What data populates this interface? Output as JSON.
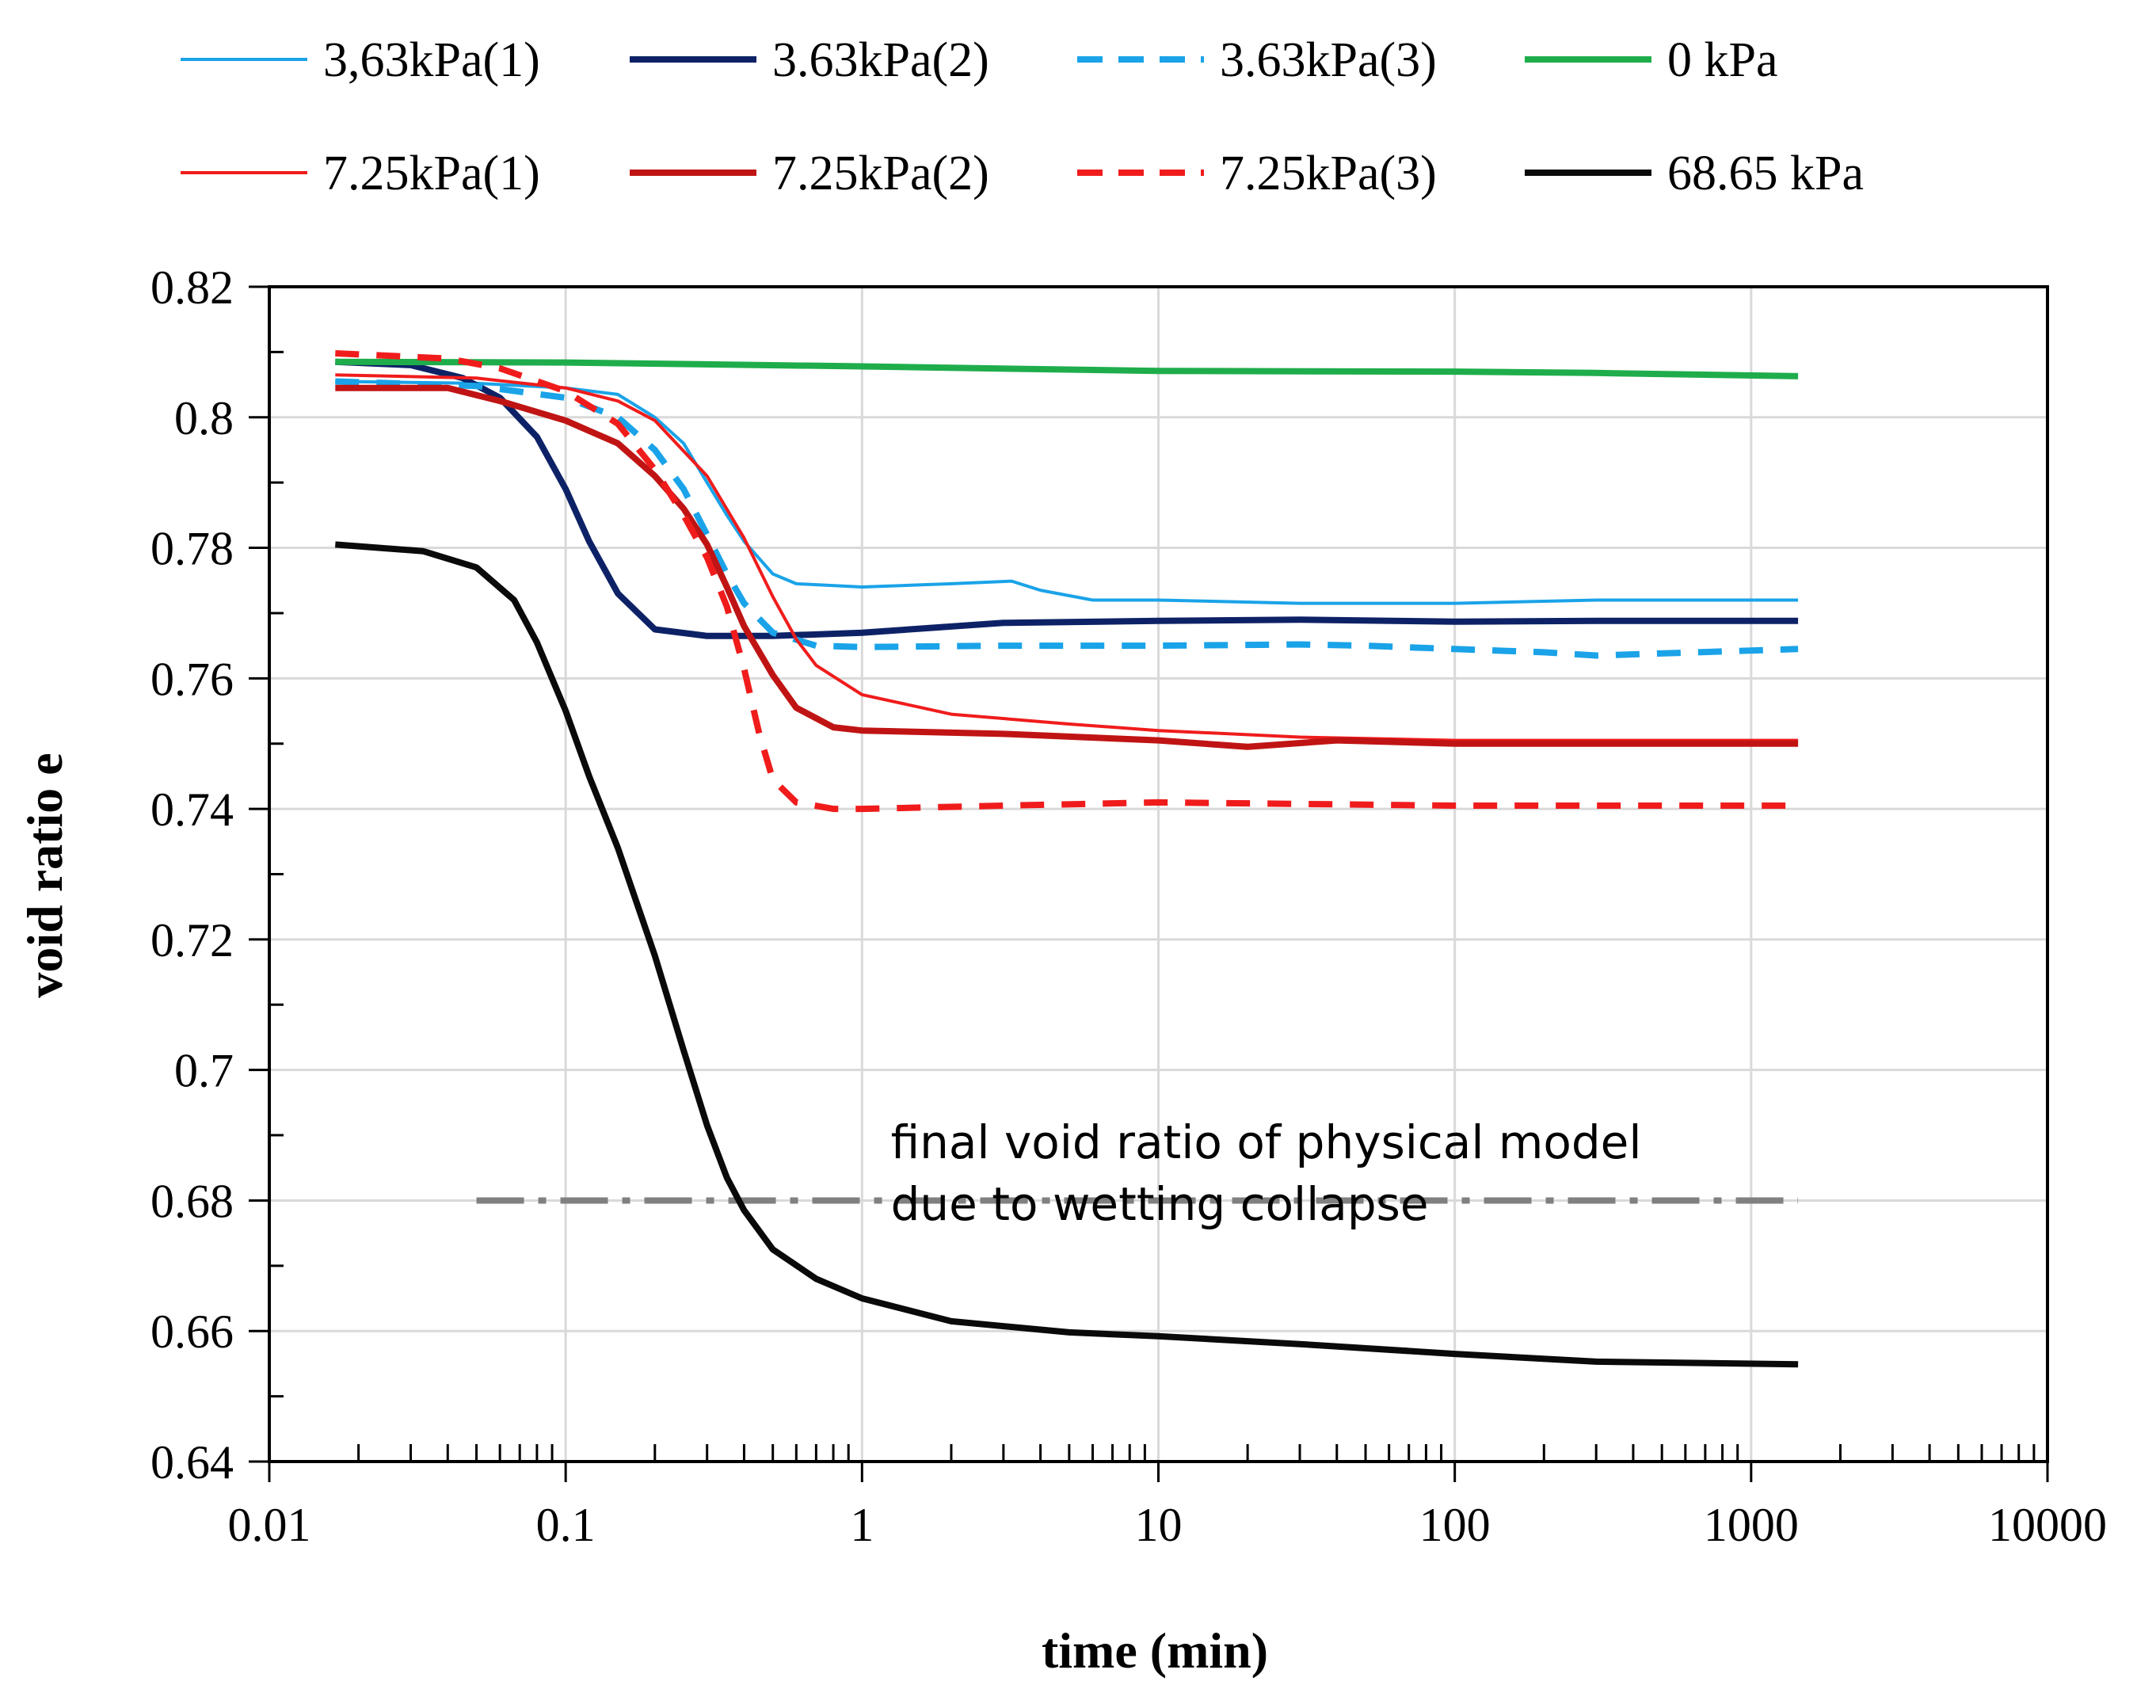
{
  "chart_data": {
    "type": "line",
    "xlabel": "time (min)",
    "ylabel": "void ratio e",
    "xscale": "log",
    "xlim": [
      0.01,
      10000
    ],
    "ylim": [
      0.64,
      0.82
    ],
    "x_ticks": [
      0.01,
      0.1,
      1,
      10,
      100,
      1000,
      10000
    ],
    "x_tick_labels": [
      "0.01",
      "0.1",
      "1",
      "10",
      "100",
      "1000",
      "10000"
    ],
    "y_ticks": [
      0.64,
      0.66,
      0.68,
      0.7,
      0.72,
      0.74,
      0.76,
      0.78,
      0.8,
      0.82
    ],
    "y_tick_labels": [
      "0.64",
      "0.66",
      "0.68",
      "0.7",
      "0.72",
      "0.74",
      "0.76",
      "0.78",
      "0.8",
      "0.82"
    ],
    "grid": true,
    "legend_position": "top",
    "series": [
      {
        "name": "3,63kPa(1)",
        "color": "#1aa3e8",
        "dash": "solid",
        "weight": "thin",
        "points": [
          [
            0.0167,
            0.8055
          ],
          [
            0.05,
            0.8052
          ],
          [
            0.1,
            0.8045
          ],
          [
            0.15,
            0.8035
          ],
          [
            0.2,
            0.8
          ],
          [
            0.25,
            0.796
          ],
          [
            0.3,
            0.79
          ],
          [
            0.35,
            0.785
          ],
          [
            0.4,
            0.781
          ],
          [
            0.5,
            0.776
          ],
          [
            0.6,
            0.7745
          ],
          [
            1,
            0.774
          ],
          [
            2,
            0.7745
          ],
          [
            3.2,
            0.7749
          ],
          [
            4,
            0.7735
          ],
          [
            6,
            0.772
          ],
          [
            10,
            0.772
          ],
          [
            30,
            0.7715
          ],
          [
            100,
            0.7715
          ],
          [
            300,
            0.772
          ],
          [
            1440,
            0.772
          ]
        ]
      },
      {
        "name": "3.63kPa(2)",
        "color": "#0d2266",
        "dash": "solid",
        "weight": "thick",
        "points": [
          [
            0.0167,
            0.8085
          ],
          [
            0.03,
            0.808
          ],
          [
            0.045,
            0.806
          ],
          [
            0.06,
            0.803
          ],
          [
            0.08,
            0.797
          ],
          [
            0.1,
            0.789
          ],
          [
            0.12,
            0.781
          ],
          [
            0.15,
            0.773
          ],
          [
            0.2,
            0.7675
          ],
          [
            0.3,
            0.7665
          ],
          [
            0.5,
            0.7665
          ],
          [
            1,
            0.767
          ],
          [
            3,
            0.7685
          ],
          [
            10,
            0.7688
          ],
          [
            30,
            0.769
          ],
          [
            100,
            0.7687
          ],
          [
            300,
            0.7688
          ],
          [
            1440,
            0.7688
          ]
        ]
      },
      {
        "name": "3.63kPa(3)",
        "color": "#1aa3e8",
        "dash": "dashed",
        "weight": "thick",
        "points": [
          [
            0.0167,
            0.8055
          ],
          [
            0.05,
            0.8048
          ],
          [
            0.1,
            0.803
          ],
          [
            0.15,
            0.8
          ],
          [
            0.2,
            0.795
          ],
          [
            0.25,
            0.789
          ],
          [
            0.3,
            0.782
          ],
          [
            0.35,
            0.776
          ],
          [
            0.4,
            0.7715
          ],
          [
            0.5,
            0.767
          ],
          [
            0.7,
            0.765
          ],
          [
            1,
            0.7648
          ],
          [
            3,
            0.765
          ],
          [
            10,
            0.765
          ],
          [
            30,
            0.7652
          ],
          [
            50,
            0.765
          ],
          [
            100,
            0.7645
          ],
          [
            200,
            0.764
          ],
          [
            300,
            0.7635
          ],
          [
            1440,
            0.7645
          ]
        ]
      },
      {
        "name": "0 kPa",
        "color": "#1fad4c",
        "dash": "solid",
        "weight": "thick",
        "points": [
          [
            0.0167,
            0.8085
          ],
          [
            0.1,
            0.8084
          ],
          [
            1,
            0.8078
          ],
          [
            10,
            0.8071
          ],
          [
            100,
            0.807
          ],
          [
            300,
            0.8068
          ],
          [
            1440,
            0.8063
          ]
        ]
      },
      {
        "name": "7.25kPa(1)",
        "color": "#f01c1c",
        "dash": "solid",
        "weight": "thin",
        "points": [
          [
            0.0167,
            0.8065
          ],
          [
            0.05,
            0.806
          ],
          [
            0.1,
            0.8045
          ],
          [
            0.15,
            0.8025
          ],
          [
            0.2,
            0.7995
          ],
          [
            0.3,
            0.791
          ],
          [
            0.4,
            0.7815
          ],
          [
            0.5,
            0.7725
          ],
          [
            0.6,
            0.766
          ],
          [
            0.7,
            0.762
          ],
          [
            1,
            0.7575
          ],
          [
            2,
            0.7545
          ],
          [
            5,
            0.753
          ],
          [
            10,
            0.752
          ],
          [
            30,
            0.751
          ],
          [
            100,
            0.7505
          ],
          [
            1440,
            0.7505
          ]
        ]
      },
      {
        "name": "7.25kPa(2)",
        "color": "#c01414",
        "dash": "solid",
        "weight": "thick",
        "points": [
          [
            0.0167,
            0.8045
          ],
          [
            0.04,
            0.8045
          ],
          [
            0.06,
            0.8025
          ],
          [
            0.1,
            0.7995
          ],
          [
            0.15,
            0.796
          ],
          [
            0.2,
            0.791
          ],
          [
            0.25,
            0.786
          ],
          [
            0.3,
            0.7805
          ],
          [
            0.35,
            0.774
          ],
          [
            0.4,
            0.768
          ],
          [
            0.5,
            0.7605
          ],
          [
            0.6,
            0.7555
          ],
          [
            0.8,
            0.7525
          ],
          [
            1,
            0.752
          ],
          [
            3,
            0.7515
          ],
          [
            10,
            0.7505
          ],
          [
            20,
            0.7495
          ],
          [
            40,
            0.7505
          ],
          [
            100,
            0.75
          ],
          [
            1440,
            0.75
          ]
        ]
      },
      {
        "name": "7.25kPa(3)",
        "color": "#f01c1c",
        "dash": "dashed",
        "weight": "thick",
        "points": [
          [
            0.0167,
            0.8098
          ],
          [
            0.04,
            0.809
          ],
          [
            0.06,
            0.8075
          ],
          [
            0.1,
            0.804
          ],
          [
            0.15,
            0.799
          ],
          [
            0.2,
            0.792
          ],
          [
            0.25,
            0.785
          ],
          [
            0.3,
            0.7785
          ],
          [
            0.35,
            0.771
          ],
          [
            0.4,
            0.7615
          ],
          [
            0.45,
            0.7515
          ],
          [
            0.5,
            0.7445
          ],
          [
            0.6,
            0.741
          ],
          [
            0.8,
            0.74
          ],
          [
            1,
            0.74
          ],
          [
            3,
            0.7405
          ],
          [
            10,
            0.741
          ],
          [
            100,
            0.7405
          ],
          [
            1440,
            0.7405
          ]
        ]
      },
      {
        "name": "68.65 kPa",
        "color": "#0a0a0a",
        "dash": "solid",
        "weight": "thick",
        "points": [
          [
            0.0167,
            0.7805
          ],
          [
            0.033,
            0.7795
          ],
          [
            0.05,
            0.777
          ],
          [
            0.067,
            0.772
          ],
          [
            0.08,
            0.7655
          ],
          [
            0.1,
            0.755
          ],
          [
            0.12,
            0.745
          ],
          [
            0.15,
            0.734
          ],
          [
            0.2,
            0.7175
          ],
          [
            0.25,
            0.703
          ],
          [
            0.3,
            0.6915
          ],
          [
            0.35,
            0.6835
          ],
          [
            0.4,
            0.6785
          ],
          [
            0.5,
            0.6725
          ],
          [
            0.7,
            0.668
          ],
          [
            1,
            0.665
          ],
          [
            2,
            0.6615
          ],
          [
            5,
            0.6598
          ],
          [
            10,
            0.6592
          ],
          [
            30,
            0.658
          ],
          [
            100,
            0.6565
          ],
          [
            300,
            0.6553
          ],
          [
            1440,
            0.6549
          ]
        ]
      }
    ],
    "reference_line": {
      "y": 0.68,
      "x_start": 0.05,
      "x_end": 1440,
      "color": "#808080"
    },
    "annotation": {
      "lines": [
        "final void ratio of physical model",
        "due to wetting collapse"
      ],
      "x": 1.25,
      "y": 0.6865
    }
  }
}
